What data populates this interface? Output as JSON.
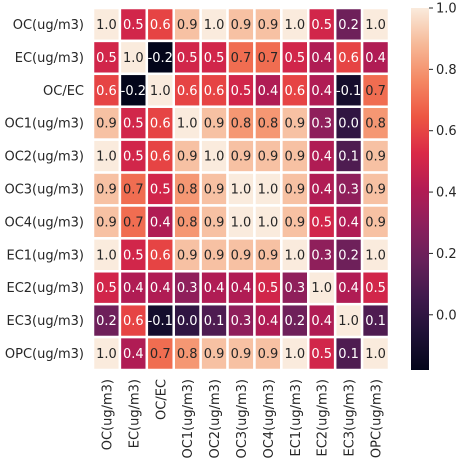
{
  "chart_data": {
    "type": "heatmap",
    "labels": [
      "OC(ug/m3)",
      "EC(ug/m3)",
      "OC/EC",
      "OC1(ug/m3)",
      "OC2(ug/m3)",
      "OC3(ug/m3)",
      "OC4(ug/m3)",
      "EC1(ug/m3)",
      "EC2(ug/m3)",
      "EC3(ug/m3)",
      "OPC(ug/m3)"
    ],
    "matrix": [
      [
        1.0,
        0.5,
        0.6,
        0.9,
        1.0,
        0.9,
        0.9,
        1.0,
        0.5,
        0.2,
        1.0
      ],
      [
        0.5,
        1.0,
        -0.2,
        0.5,
        0.5,
        0.7,
        0.7,
        0.5,
        0.4,
        0.6,
        0.4
      ],
      [
        0.6,
        -0.2,
        1.0,
        0.6,
        0.6,
        0.5,
        0.4,
        0.6,
        0.4,
        -0.1,
        0.7
      ],
      [
        0.9,
        0.5,
        0.6,
        1.0,
        0.9,
        0.8,
        0.8,
        0.9,
        0.3,
        0.0,
        0.8
      ],
      [
        1.0,
        0.5,
        0.6,
        0.9,
        1.0,
        0.9,
        0.9,
        0.9,
        0.4,
        0.1,
        0.9
      ],
      [
        0.9,
        0.7,
        0.5,
        0.8,
        0.9,
        1.0,
        1.0,
        0.9,
        0.4,
        0.3,
        0.9
      ],
      [
        0.9,
        0.7,
        0.4,
        0.8,
        0.9,
        1.0,
        1.0,
        0.9,
        0.5,
        0.4,
        0.9
      ],
      [
        1.0,
        0.5,
        0.6,
        0.9,
        0.9,
        0.9,
        0.9,
        1.0,
        0.3,
        0.2,
        1.0
      ],
      [
        0.5,
        0.4,
        0.4,
        0.3,
        0.4,
        0.4,
        0.5,
        0.3,
        1.0,
        0.4,
        0.5
      ],
      [
        0.2,
        0.6,
        -0.1,
        0.0,
        0.1,
        0.3,
        0.4,
        0.2,
        0.4,
        1.0,
        0.1
      ],
      [
        1.0,
        0.4,
        0.7,
        0.8,
        0.9,
        0.9,
        0.9,
        1.0,
        0.5,
        0.1,
        1.0
      ]
    ],
    "vmin": -0.18,
    "vmax": 1.0,
    "colormap": "rocket",
    "colorbar_ticks": [
      0.0,
      0.2,
      0.4,
      0.6,
      0.8,
      1.0
    ],
    "colorbar_tick_labels": [
      "0.0",
      "0.2",
      "0.4",
      "0.6",
      "0.8",
      "1.0"
    ],
    "annotation_format": "one decimal",
    "cell_border_color": "#ffffff",
    "title": "",
    "xlabel": "",
    "ylabel": ""
  }
}
